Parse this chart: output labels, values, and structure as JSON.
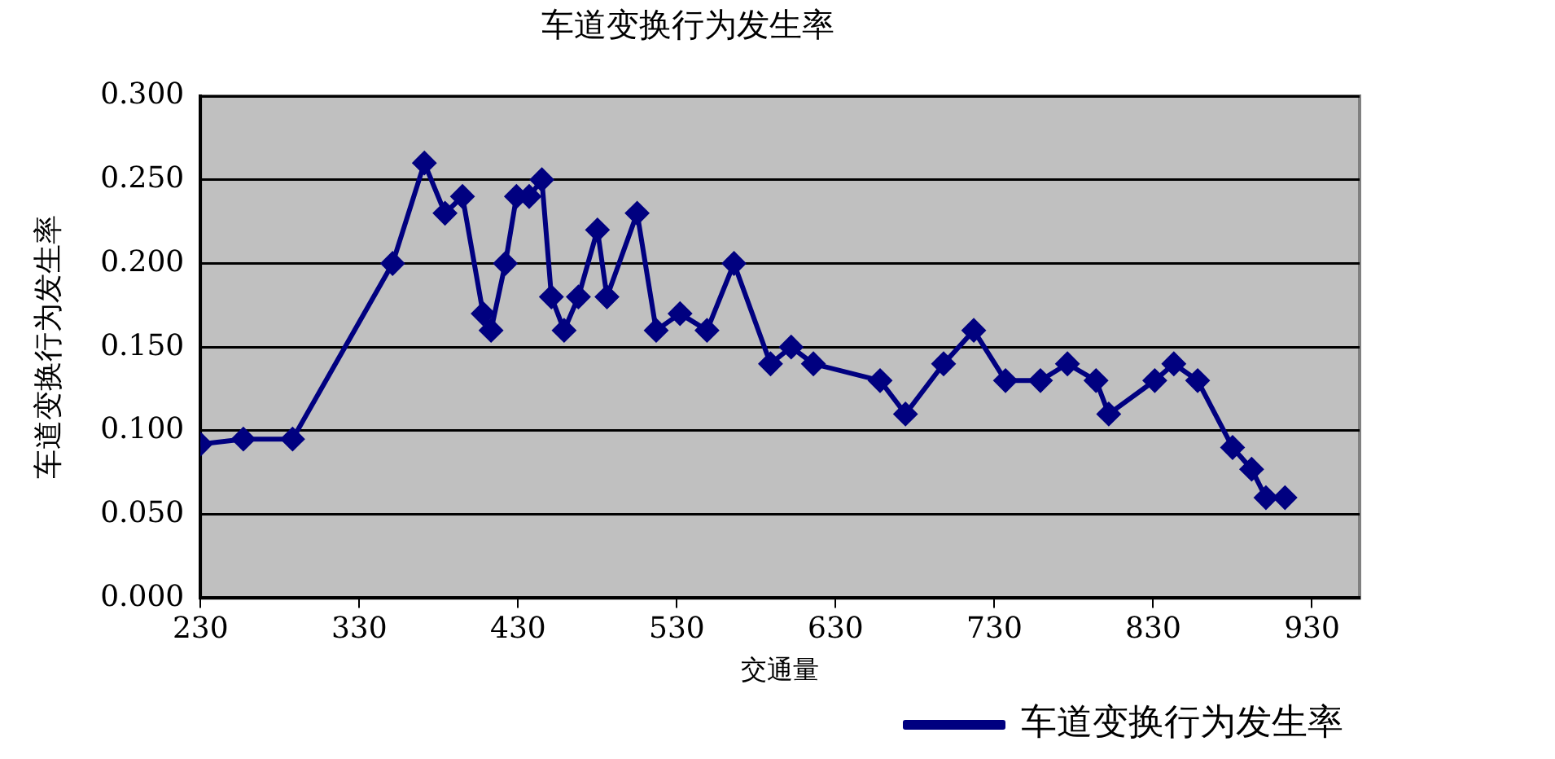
{
  "chart_data": {
    "type": "line",
    "title": "车道变换行为发生率",
    "xlabel": "交通量",
    "ylabel": "车道变换行为发生率",
    "x": [
      230,
      257,
      288,
      351,
      371,
      384,
      395,
      408,
      413,
      422,
      429,
      437,
      445,
      451,
      459,
      468,
      480,
      486,
      505,
      517,
      532,
      549,
      566,
      589,
      602,
      616,
      658,
      674,
      698,
      717,
      737,
      759,
      776,
      794,
      802,
      831,
      843,
      858,
      880,
      892,
      901,
      913
    ],
    "series": [
      {
        "name": "车道变换行为发生率",
        "color": "#000080",
        "values": [
          0.092,
          0.095,
          0.095,
          0.2,
          0.26,
          0.23,
          0.24,
          0.17,
          0.16,
          0.2,
          0.24,
          0.24,
          0.25,
          0.18,
          0.16,
          0.18,
          0.22,
          0.18,
          0.23,
          0.16,
          0.17,
          0.16,
          0.2,
          0.14,
          0.15,
          0.14,
          0.13,
          0.11,
          0.14,
          0.16,
          0.13,
          0.13,
          0.14,
          0.13,
          0.11,
          0.13,
          0.14,
          0.13,
          0.09,
          0.077,
          0.06,
          0.06
        ]
      }
    ],
    "xlim": [
      230,
      960
    ],
    "xticks": [
      230,
      330,
      430,
      530,
      630,
      730,
      830,
      930
    ],
    "ylim": [
      0,
      0.3
    ],
    "yticks": [
      {
        "value": 0,
        "label": "0.000"
      },
      {
        "value": 0.05,
        "label": "0.050"
      },
      {
        "value": 0.1,
        "label": "0.100"
      },
      {
        "value": 0.15,
        "label": "0.150"
      },
      {
        "value": 0.2,
        "label": "0.200"
      },
      {
        "value": 0.25,
        "label": "0.250"
      },
      {
        "value": 0.3,
        "label": "0.300"
      }
    ],
    "grid": "y",
    "legend": "bottom right",
    "marker": "diamond",
    "line_style": "solid"
  }
}
